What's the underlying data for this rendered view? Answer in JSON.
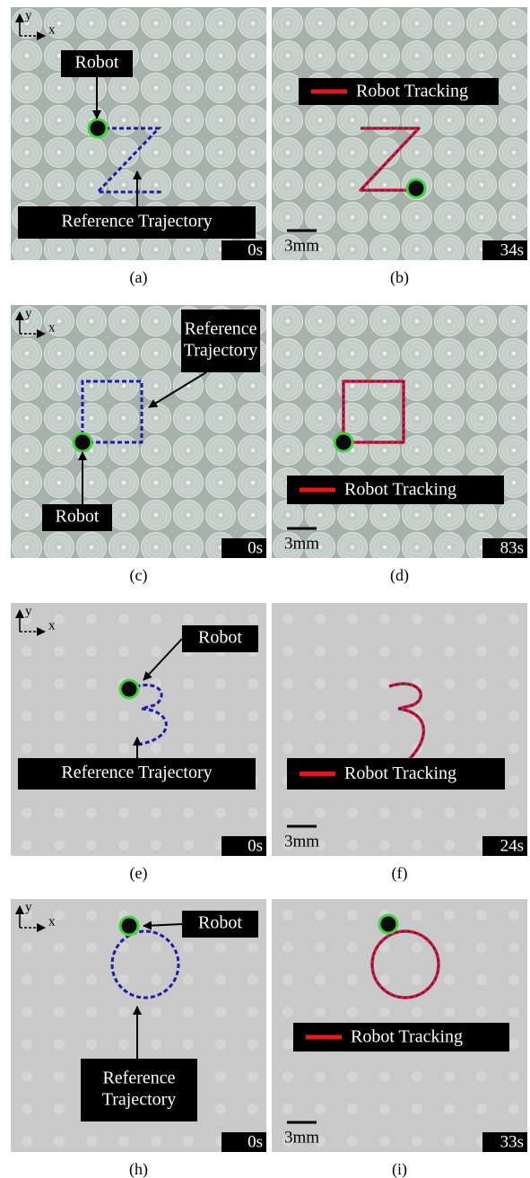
{
  "panels": [
    {
      "caption": "(a)",
      "axis_y": "y",
      "axis_x": "x",
      "labels": [
        [
          "Robot"
        ],
        [
          "Reference Trajectory"
        ]
      ],
      "time": "0s"
    },
    {
      "caption": "(b)",
      "legend": "Robot Tracking",
      "scale": "3mm",
      "time": "34s"
    },
    {
      "caption": "(c)",
      "axis_y": "y",
      "axis_x": "x",
      "labels": [
        [
          "Reference",
          "Trajectory"
        ],
        [
          "Robot"
        ]
      ],
      "time": "0s"
    },
    {
      "caption": "(d)",
      "legend": "Robot Tracking",
      "scale": "3mm",
      "time": "83s"
    },
    {
      "caption": "(e)",
      "axis_y": "y",
      "axis_x": "x",
      "labels": [
        [
          "Robot"
        ],
        [
          "Reference Trajectory"
        ]
      ],
      "time": "0s"
    },
    {
      "caption": "(f)",
      "legend": "Robot Tracking",
      "scale": "3mm",
      "time": "24s"
    },
    {
      "caption": "(h)",
      "axis_y": "y",
      "axis_x": "x",
      "labels": [
        [
          "Robot"
        ],
        [
          "Reference",
          "Trajectory"
        ]
      ],
      "time": "0s"
    },
    {
      "caption": "(i)",
      "legend": "Robot Tracking",
      "scale": "3mm",
      "time": "33s"
    }
  ]
}
